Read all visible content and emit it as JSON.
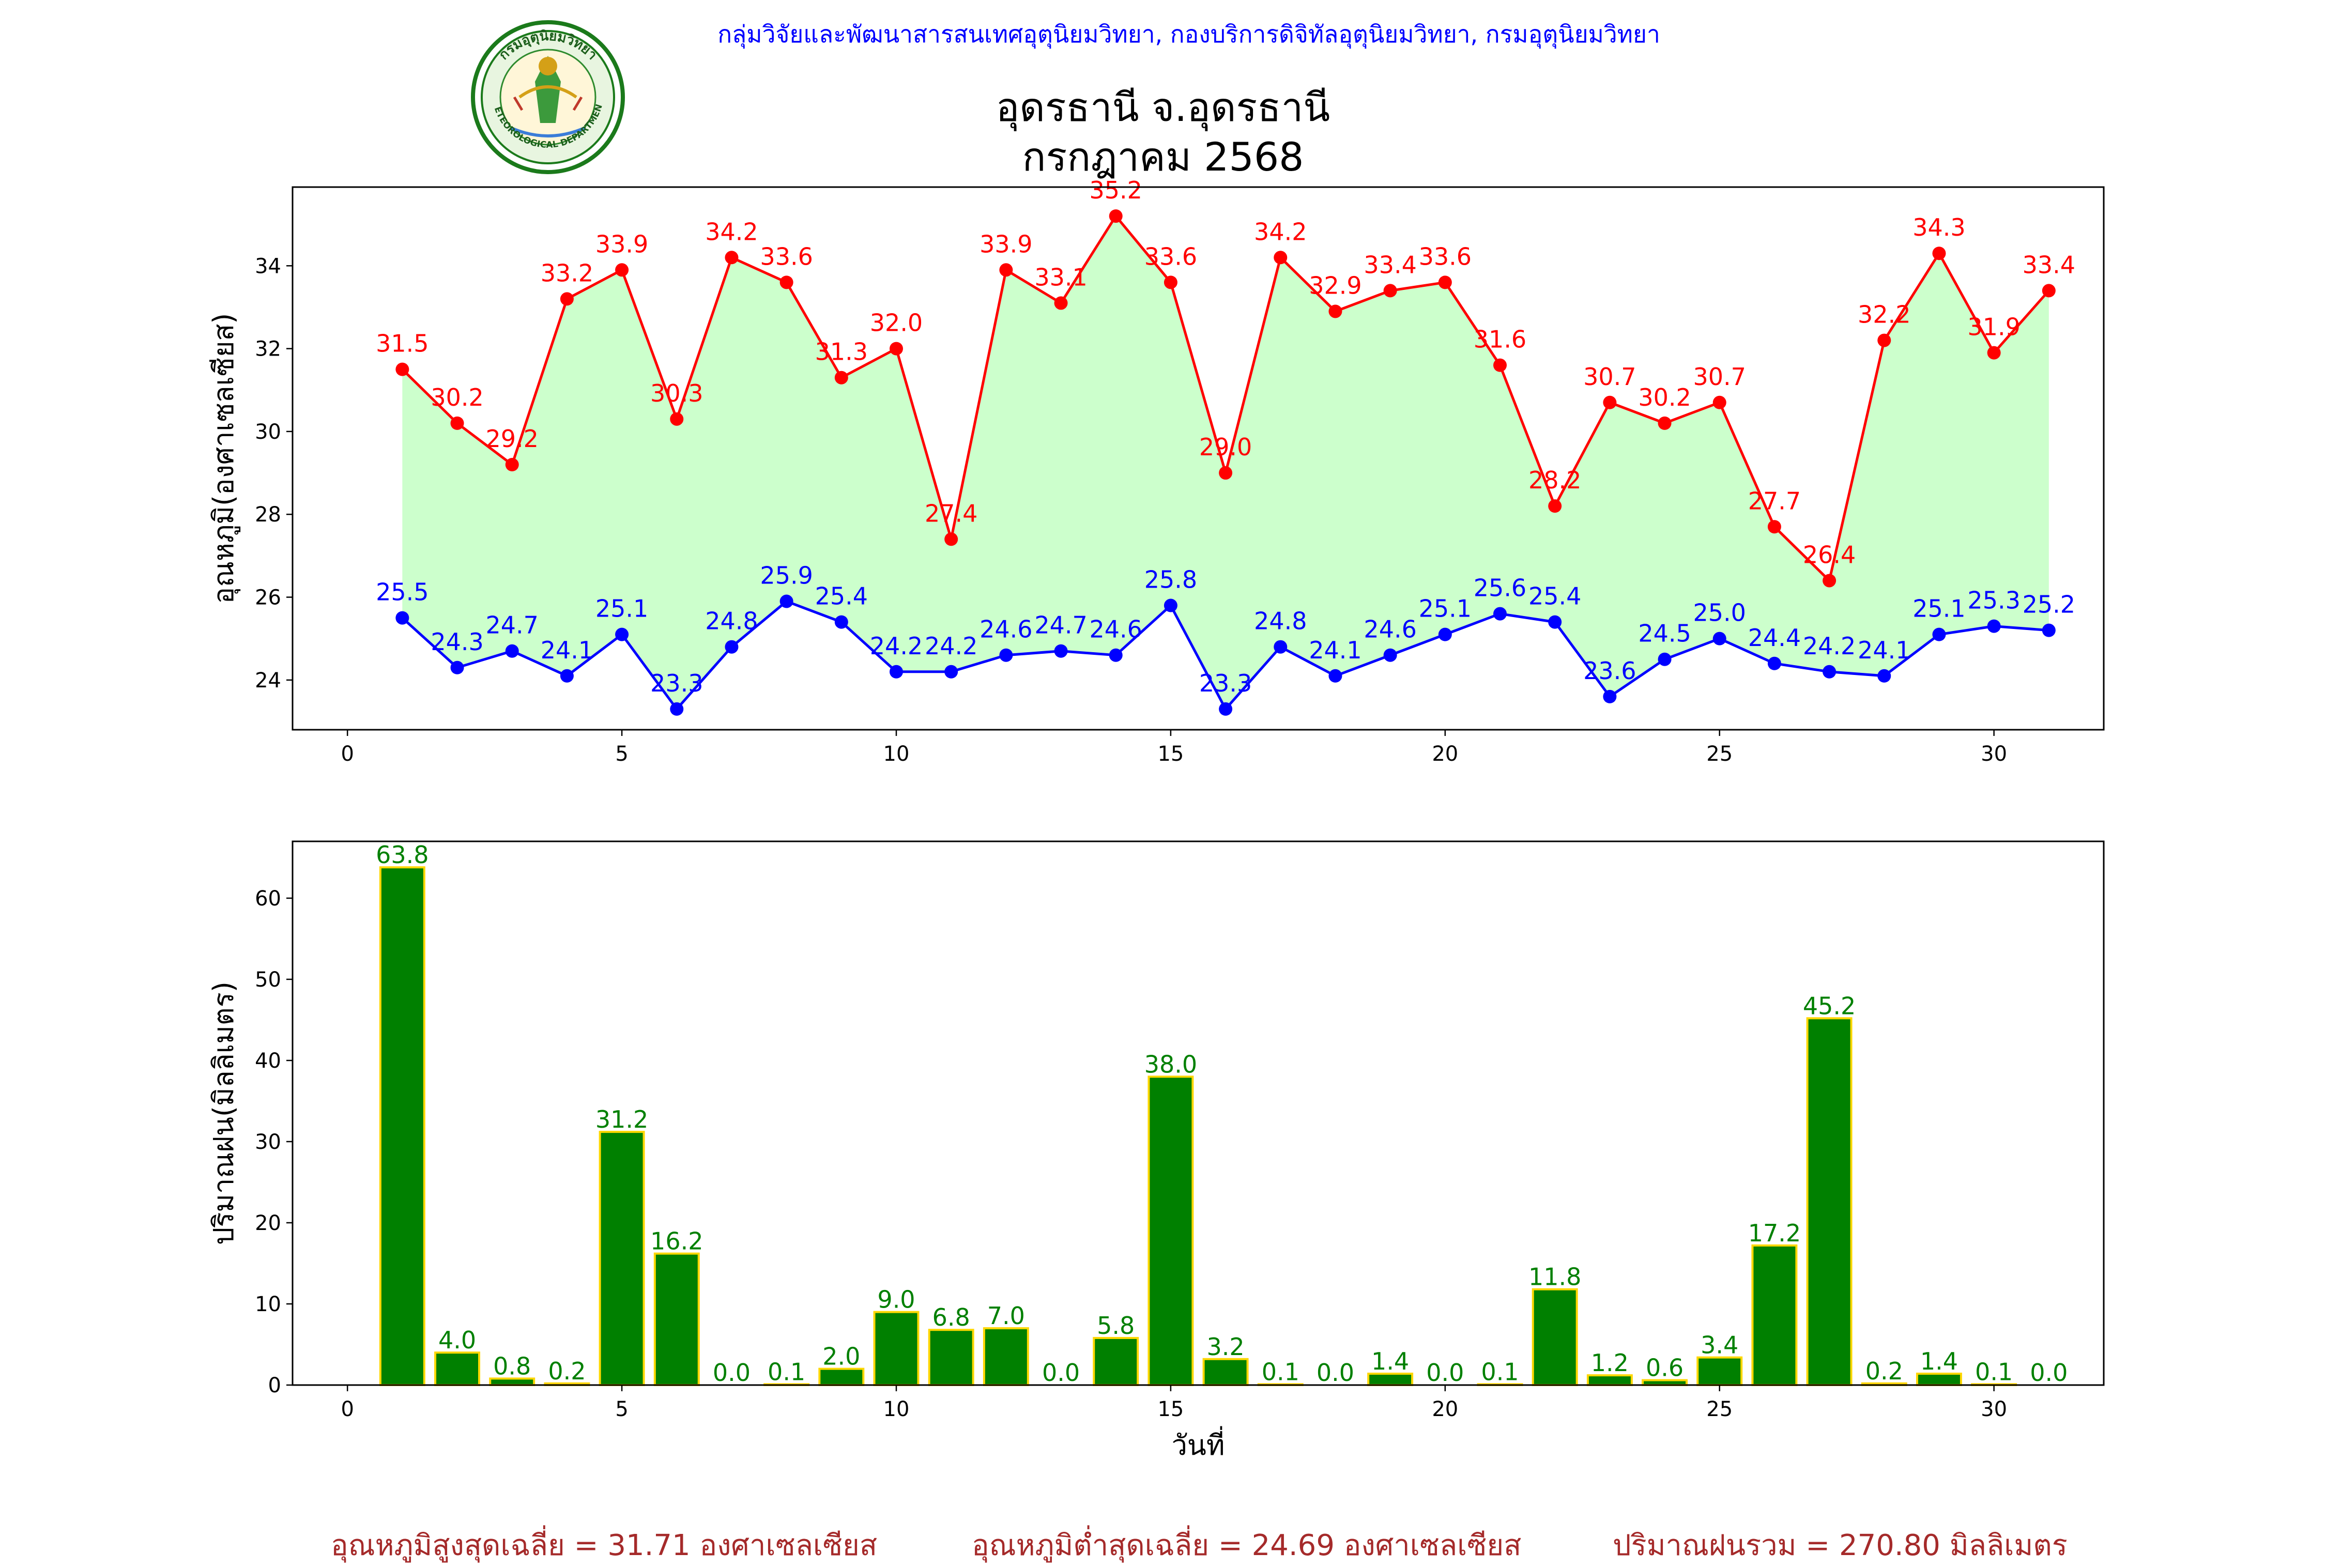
{
  "header": {
    "agency_line": "กลุ่มวิจัยและพัฒนาสารสนเทศอุตุนิยมวิทยา, กองบริการดิจิทัลอุตุนิยมวิทยา, กรมอุตุนิยมวิทยา",
    "title_line1": "อุดรธานี จ.อุดรธานี",
    "title_line2": "กรกฎาคม 2568",
    "logo_icon": "meteorological-department-seal-icon",
    "logo_text_top": "กรมอุตุนิยมวิทยา",
    "logo_text_bottom": "METEOROLOGICAL DEPARTMENT"
  },
  "colors": {
    "max_line": "#ff0000",
    "min_line": "#0000ff",
    "fill": "#ccffcc",
    "bar_fill": "#008000",
    "bar_edge": "#ffd700",
    "bar_label": "#008000",
    "summary": "#a52a2a"
  },
  "chart_data": [
    {
      "type": "line",
      "ylabel": "อุณหภูมิ(องศาเซลเซียส)",
      "xlabel": "",
      "xlim": [
        -1,
        32
      ],
      "ylim": [
        22.8,
        35.9
      ],
      "xticks": [
        0,
        5,
        10,
        15,
        20,
        25,
        30
      ],
      "yticks": [
        24,
        26,
        28,
        30,
        32,
        34
      ],
      "grid": false,
      "x": [
        1,
        2,
        3,
        4,
        5,
        6,
        7,
        8,
        9,
        10,
        11,
        12,
        13,
        14,
        15,
        16,
        17,
        18,
        19,
        20,
        21,
        22,
        23,
        24,
        25,
        26,
        27,
        28,
        29,
        30,
        31
      ],
      "series": [
        {
          "key": "max",
          "values": [
            31.5,
            30.2,
            29.2,
            33.2,
            33.9,
            30.3,
            34.2,
            33.6,
            31.3,
            32.0,
            27.4,
            33.9,
            33.1,
            35.2,
            33.6,
            29.0,
            34.2,
            32.9,
            33.4,
            33.6,
            31.6,
            28.2,
            30.7,
            30.2,
            30.7,
            27.7,
            26.4,
            32.2,
            34.3,
            31.9,
            33.4
          ]
        },
        {
          "key": "min",
          "values": [
            25.5,
            24.3,
            24.7,
            24.1,
            25.1,
            23.3,
            24.8,
            25.9,
            25.4,
            24.2,
            24.2,
            24.6,
            24.7,
            24.6,
            25.8,
            23.3,
            24.8,
            24.1,
            24.6,
            25.1,
            25.6,
            25.4,
            23.6,
            24.5,
            25.0,
            24.4,
            24.2,
            24.1,
            25.1,
            25.3,
            25.2
          ]
        }
      ]
    },
    {
      "type": "bar",
      "ylabel": "ปริมาณฝน(มิลลิเมตร)",
      "xlabel": "วันที่",
      "xlim": [
        -1,
        32
      ],
      "ylim": [
        0,
        67
      ],
      "xticks": [
        0,
        5,
        10,
        15,
        20,
        25,
        30
      ],
      "yticks": [
        0,
        10,
        20,
        30,
        40,
        50,
        60
      ],
      "grid": false,
      "x": [
        1,
        2,
        3,
        4,
        5,
        6,
        7,
        8,
        9,
        10,
        11,
        12,
        13,
        14,
        15,
        16,
        17,
        18,
        19,
        20,
        21,
        22,
        23,
        24,
        25,
        26,
        27,
        28,
        29,
        30,
        31
      ],
      "values": [
        63.8,
        4.0,
        0.8,
        0.2,
        31.2,
        16.2,
        0.0,
        0.1,
        2.0,
        9.0,
        6.8,
        7.0,
        0.0,
        5.8,
        38.0,
        3.2,
        0.1,
        0.0,
        1.4,
        0.0,
        0.1,
        11.8,
        1.2,
        0.6,
        3.4,
        17.2,
        45.2,
        0.2,
        1.4,
        0.1,
        0.0
      ]
    }
  ],
  "summary": {
    "avg_max": "อุณหภูมิสูงสุดเฉลี่ย = 31.71 องศาเซลเซียส",
    "avg_min": "อุณหภูมิต่ำสุดเฉลี่ย = 24.69 องศาเซลเซียส",
    "total_rain": "ปริมาณฝนรวม = 270.80 มิลลิเมตร"
  }
}
